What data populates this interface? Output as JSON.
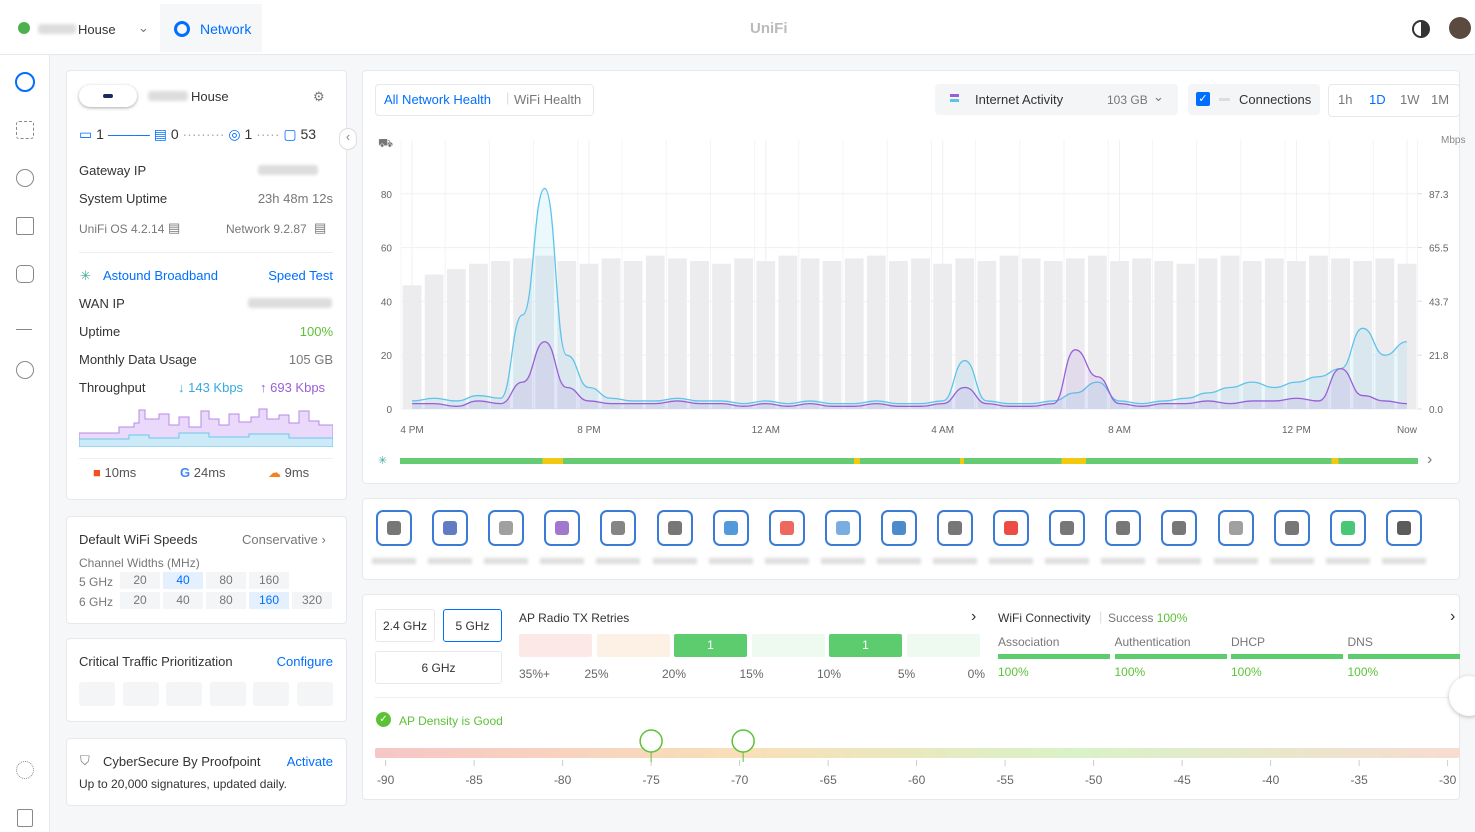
{
  "topbar": {
    "site": "House",
    "app": "Network",
    "brand": "UniFi"
  },
  "overview": {
    "name": "House",
    "counts": [
      "1",
      "0",
      "1",
      "53"
    ],
    "gateway_ip_label": "Gateway IP",
    "uptime_label": "System Uptime",
    "uptime": "23h 48m 12s",
    "os": "UniFi OS 4.2.14",
    "network": "Network 9.2.87"
  },
  "wan": {
    "isp": "Astound Broadband",
    "speed_test": "Speed Test",
    "wan_ip_label": "WAN IP",
    "uptime_label": "Uptime",
    "uptime": "100%",
    "usage_label": "Monthly Data Usage",
    "usage": "105 GB",
    "throughput_label": "Throughput",
    "down": "143 Kbps",
    "up": "693 Kbps",
    "latency": [
      "10ms",
      "24ms",
      "9ms"
    ]
  },
  "wifi_speeds": {
    "title": "Default WiFi Speeds",
    "mode": "Conservative",
    "subtitle": "Channel Widths (MHz)",
    "rows": [
      {
        "band": "5 GHz",
        "options": [
          "20",
          "40",
          "80",
          "160"
        ],
        "selected": 1
      },
      {
        "band": "6 GHz",
        "options": [
          "20",
          "40",
          "80",
          "160",
          "320"
        ],
        "selected": 3
      }
    ]
  },
  "traffic": {
    "title": "Critical Traffic Prioritization",
    "action": "Configure"
  },
  "cybersecure": {
    "title": "CyberSecure By Proofpoint",
    "action": "Activate",
    "note": "Up to 20,000 signatures, updated daily."
  },
  "health": {
    "tabs": [
      "All Network Health",
      "WiFi Health"
    ],
    "active_tab": 0,
    "activity_label": "Internet Activity",
    "activity_value": "103 GB",
    "connections": "Connections",
    "ranges": [
      "1h",
      "1D",
      "1W",
      "1M"
    ],
    "active_range": 1
  },
  "chart_data": {
    "type": "line",
    "y2_label": "Mbps",
    "x": [
      0,
      0.5,
      1,
      1.5,
      2,
      2.5,
      3,
      3.5,
      4,
      4.5,
      5,
      5.5,
      6,
      6.5,
      7,
      7.5,
      8,
      8.5,
      9,
      9.5,
      10,
      10.5,
      11,
      11.5,
      12,
      12.5,
      13,
      13.5,
      14,
      14.5,
      15,
      15.5,
      16,
      16.5,
      17,
      17.5,
      18,
      18.5,
      19,
      19.5,
      20,
      20.5,
      21,
      21.5,
      22,
      22.5
    ],
    "xlim": [
      -0.25,
      22.75
    ],
    "xticks": [
      {
        "value": 0,
        "label": "4 PM"
      },
      {
        "value": 4,
        "label": "8 PM"
      },
      {
        "value": 8,
        "label": "12 AM"
      },
      {
        "value": 12,
        "label": "4 AM"
      },
      {
        "value": 16,
        "label": "8 AM"
      },
      {
        "value": 20,
        "label": "12 PM"
      },
      {
        "value": 22.5,
        "label": "Now"
      }
    ],
    "ylim": [
      0,
      100
    ],
    "yticks": [
      0,
      20,
      40,
      60,
      80
    ],
    "y2lim": [
      0,
      109.1
    ],
    "y2ticks": [
      {
        "value": 0,
        "label": "0.0"
      },
      21.8,
      43.7,
      65.5,
      87.3
    ],
    "series": [
      {
        "kind": "bar",
        "color": "#ececef",
        "values": [
          46,
          50,
          52,
          54,
          55,
          56,
          57,
          55,
          54,
          56,
          55,
          57,
          56,
          55,
          54,
          56,
          55,
          57,
          56,
          55,
          56,
          57,
          55,
          56,
          54,
          56,
          55,
          57,
          56,
          55,
          56,
          57,
          55,
          56,
          55,
          54,
          56,
          57,
          55,
          56,
          55,
          57,
          56,
          55,
          56,
          54
        ]
      },
      {
        "kind": "line",
        "color": "#5ec3ea",
        "values": [
          3,
          4,
          3,
          5,
          4,
          35,
          82,
          20,
          8,
          4,
          3,
          3,
          4,
          3,
          3,
          2,
          3,
          2,
          3,
          2,
          2,
          3,
          2,
          2,
          3,
          18,
          3,
          2,
          2,
          3,
          6,
          10,
          3,
          2,
          3,
          4,
          6,
          8,
          10,
          8,
          10,
          12,
          15,
          30,
          20,
          25
        ]
      },
      {
        "kind": "line",
        "color": "#9a5fd6",
        "values": [
          2,
          2,
          1,
          3,
          2,
          10,
          25,
          8,
          3,
          2,
          2,
          2,
          3,
          2,
          2,
          1,
          2,
          1,
          2,
          1,
          1,
          2,
          1,
          1,
          2,
          8,
          2,
          1,
          1,
          2,
          22,
          12,
          2,
          1,
          2,
          2,
          3,
          2,
          3,
          3,
          4,
          3,
          15,
          5,
          3,
          2
        ]
      }
    ]
  },
  "retries": {
    "bands": [
      "2.4 GHz",
      "5 GHz",
      "6 GHz"
    ],
    "active_band": 1,
    "title": "AP Radio TX Retries",
    "bins": [
      "35%+",
      "25%",
      "20%",
      "15%",
      "10%",
      "5%",
      "0%"
    ],
    "counts": [
      null,
      null,
      1,
      null,
      1,
      null
    ]
  },
  "connectivity": {
    "title": "WiFi Connectivity",
    "success_label": "Success",
    "success": "100%",
    "steps": [
      {
        "name": "Association",
        "value": "100%"
      },
      {
        "name": "Authentication",
        "value": "100%"
      },
      {
        "name": "DHCP",
        "value": "100%"
      },
      {
        "name": "DNS",
        "value": "100%"
      }
    ]
  },
  "density": {
    "status": "AP Density is Good",
    "xlim": [
      -90.6,
      -29.3
    ],
    "ticks": [
      -90,
      -85,
      -80,
      -75,
      -70,
      -65,
      -60,
      -55,
      -50,
      -45,
      -40,
      -35,
      -30
    ],
    "markers": [
      -75,
      -69.8
    ]
  }
}
